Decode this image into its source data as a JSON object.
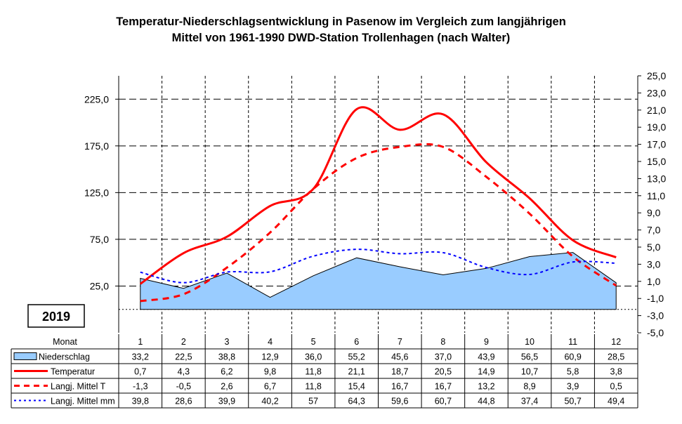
{
  "title_line1": "Temperatur-Niederschlagsentwicklung in Pasenow im Vergleich zum langjährigen",
  "title_line2": "Mittel von 1961-1990 DWD-Station Trollenhagen (nach Walter)",
  "year_box": "2019",
  "chart_data": {
    "type": "line",
    "categories": [
      "1",
      "2",
      "3",
      "4",
      "5",
      "6",
      "7",
      "8",
      "9",
      "10",
      "11",
      "12"
    ],
    "x_header": "Monat",
    "y_left": {
      "ticks": [
        "225,0",
        "175,0",
        "125,0",
        "75,0",
        "25,0"
      ],
      "tick_values": [
        225,
        175,
        125,
        75,
        25
      ],
      "ylim": [
        -25,
        250
      ]
    },
    "y_right": {
      "ticks": [
        "25,0",
        "23,0",
        "21,0",
        "19,0",
        "17,0",
        "15,0",
        "13,0",
        "11,0",
        "9,0",
        "7,0",
        "5,0",
        "3,0",
        "1,0",
        "-1,0",
        "-3,0",
        "-5,0"
      ],
      "tick_values": [
        25,
        23,
        21,
        19,
        17,
        15,
        13,
        11,
        9,
        7,
        5,
        3,
        1,
        -1,
        -3,
        -5
      ],
      "ylim": [
        -5,
        25
      ]
    },
    "series": [
      {
        "name": "Niederschlag",
        "style": "area",
        "axis": "left",
        "color": "#99ccff",
        "values": [
          33.2,
          22.5,
          38.8,
          12.9,
          36.0,
          55.2,
          45.6,
          37.0,
          43.9,
          56.5,
          60.9,
          28.5
        ],
        "labels": [
          "33,2",
          "22,5",
          "38,8",
          "12,9",
          "36,0",
          "55,2",
          "45,6",
          "37,0",
          "43,9",
          "56,5",
          "60,9",
          "28,5"
        ]
      },
      {
        "name": "Temperatur",
        "style": "solid",
        "axis": "right",
        "color": "#ff0000",
        "values": [
          0.7,
          4.3,
          6.2,
          9.8,
          11.8,
          21.1,
          18.7,
          20.5,
          14.9,
          10.7,
          5.8,
          3.8
        ],
        "labels": [
          "0,7",
          "4,3",
          "6,2",
          "9,8",
          "11,8",
          "21,1",
          "18,7",
          "20,5",
          "14,9",
          "10,7",
          "5,8",
          "3,8"
        ]
      },
      {
        "name": "Langj. Mittel T",
        "style": "dashed",
        "axis": "right",
        "color": "#ff0000",
        "values": [
          -1.3,
          -0.5,
          2.6,
          6.7,
          11.8,
          15.4,
          16.7,
          16.7,
          13.2,
          8.9,
          3.9,
          0.5
        ],
        "labels": [
          "-1,3",
          "-0,5",
          "2,6",
          "6,7",
          "11,8",
          "15,4",
          "16,7",
          "16,7",
          "13,2",
          "8,9",
          "3,9",
          "0,5"
        ]
      },
      {
        "name": "Langj. Mittel mm",
        "style": "dotted",
        "axis": "left",
        "color": "#0000ff",
        "values": [
          39.8,
          28.6,
          39.9,
          40.2,
          57,
          64.3,
          59.6,
          60.7,
          44.8,
          37.4,
          50.7,
          49.4
        ],
        "labels": [
          "39,8",
          "28,6",
          "39,9",
          "40,2",
          "57",
          "64,3",
          "59,6",
          "60,7",
          "44,8",
          "37,4",
          "50,7",
          "49,4"
        ]
      }
    ]
  }
}
